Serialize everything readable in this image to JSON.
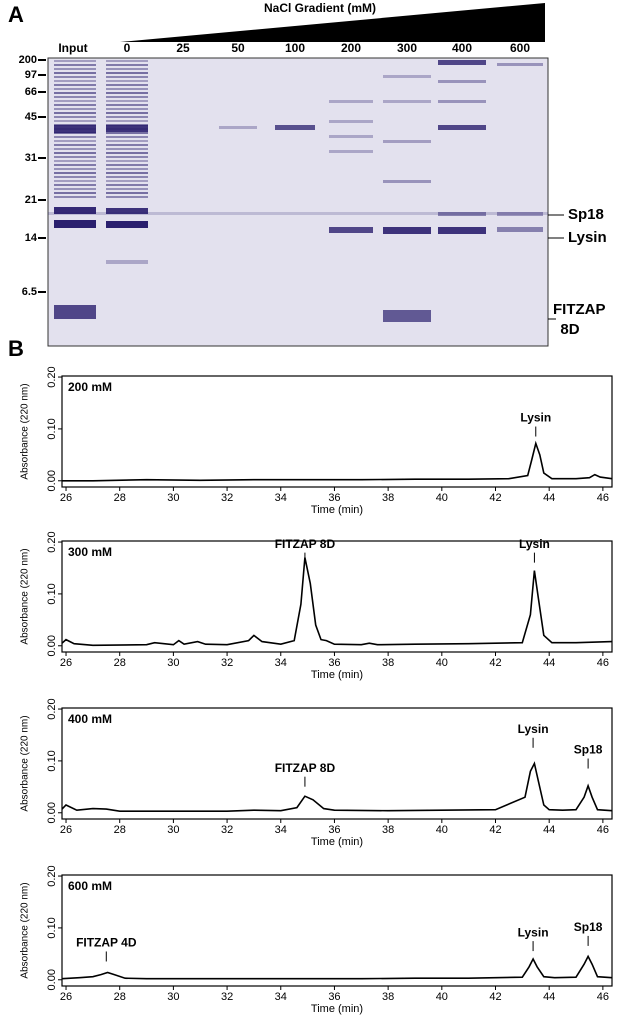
{
  "panel_labels": [
    "A",
    "B"
  ],
  "gel": {
    "title": "NaCl Gradient (mM)",
    "lanes": [
      "Input",
      "0",
      "25",
      "50",
      "100",
      "200",
      "300",
      "400",
      "600"
    ],
    "markers": [
      "200",
      "97",
      "66",
      "45",
      "31",
      "21",
      "14",
      "6.5"
    ],
    "band_labels": [
      "Sp18",
      "Lysin",
      "FITZAP",
      "8D"
    ]
  },
  "chart_data": [
    {
      "type": "line",
      "title": "200 mM",
      "xlabel": "Time (min)",
      "ylabel": "Absorbance (220 nm)",
      "color": "#000000",
      "xlim": [
        25.85,
        46.34
      ],
      "ylim": [
        -0.012,
        0.202
      ],
      "xticks": [
        26,
        28,
        30,
        32,
        34,
        36,
        38,
        40,
        42,
        44,
        46
      ],
      "yticks": [
        {
          "value": 0,
          "label": "0.00"
        },
        {
          "value": 0.1,
          "label": "0.10"
        },
        {
          "value": 0.2,
          "label": "0.20"
        }
      ],
      "x": [
        25.85,
        27,
        29,
        31,
        33,
        35,
        37,
        39,
        41,
        42.5,
        43.2,
        43.35,
        43.5,
        43.65,
        43.8,
        44.1,
        45,
        45.5,
        45.7,
        45.9,
        46.34
      ],
      "values": [
        0.0,
        0.0,
        0.002,
        0.001,
        0.002,
        0.002,
        0.002,
        0.003,
        0.003,
        0.004,
        0.01,
        0.04,
        0.072,
        0.05,
        0.015,
        0.004,
        0.004,
        0.006,
        0.012,
        0.007,
        0.004
      ],
      "annotations": [
        {
          "text": "Lysin",
          "x": 43.5,
          "y": 0.12
        }
      ]
    },
    {
      "type": "line",
      "title": "300 mM",
      "xlabel": "Time (min)",
      "ylabel": "Absorbance (220 nm)",
      "color": "#000000",
      "xlim": [
        25.85,
        46.34
      ],
      "ylim": [
        -0.012,
        0.202
      ],
      "xticks": [
        26,
        28,
        30,
        32,
        34,
        36,
        38,
        40,
        42,
        44,
        46
      ],
      "yticks": [
        {
          "value": 0,
          "label": "0.00"
        },
        {
          "value": 0.1,
          "label": "0.10"
        },
        {
          "value": 0.2,
          "label": "0.20"
        }
      ],
      "x": [
        25.85,
        26,
        26.3,
        27,
        29,
        29.3,
        30,
        30.2,
        30.4,
        30.9,
        31.2,
        32,
        32.8,
        33,
        33.3,
        34,
        34.5,
        34.75,
        34.9,
        35.1,
        35.3,
        35.5,
        35.7,
        36,
        37,
        37.3,
        37.6,
        39,
        41,
        43,
        43.3,
        43.45,
        43.6,
        43.8,
        44.1,
        45,
        46.34
      ],
      "values": [
        0.005,
        0.012,
        0.004,
        0.001,
        0.002,
        0.006,
        0.002,
        0.01,
        0.003,
        0.008,
        0.003,
        0.002,
        0.01,
        0.02,
        0.008,
        0.003,
        0.01,
        0.08,
        0.17,
        0.12,
        0.04,
        0.012,
        0.01,
        0.003,
        0.002,
        0.005,
        0.002,
        0.003,
        0.004,
        0.006,
        0.06,
        0.145,
        0.09,
        0.02,
        0.006,
        0.006,
        0.008
      ],
      "annotations": [
        {
          "text": "FITZAP 8D",
          "x": 34.9,
          "y": 0.195
        },
        {
          "text": "Lysin",
          "x": 43.45,
          "y": 0.195
        }
      ]
    },
    {
      "type": "line",
      "title": "400 mM",
      "xlabel": "Time (min)",
      "ylabel": "Absorbance (220 nm)",
      "color": "#000000",
      "xlim": [
        25.85,
        46.34
      ],
      "ylim": [
        -0.012,
        0.202
      ],
      "xticks": [
        26,
        28,
        30,
        32,
        34,
        36,
        38,
        40,
        42,
        44,
        46
      ],
      "yticks": [
        {
          "value": 0,
          "label": "0.00"
        },
        {
          "value": 0.1,
          "label": "0.10"
        },
        {
          "value": 0.2,
          "label": "0.20"
        }
      ],
      "x": [
        25.85,
        26,
        26.4,
        27,
        27.5,
        28,
        30,
        32,
        33,
        34,
        34.6,
        34.9,
        35.2,
        35.6,
        36,
        38,
        40,
        42,
        43.1,
        43.3,
        43.45,
        43.6,
        43.8,
        44,
        44.5,
        45,
        45.3,
        45.45,
        45.6,
        45.8,
        46.34
      ],
      "values": [
        0.007,
        0.015,
        0.005,
        0.008,
        0.007,
        0.003,
        0.003,
        0.003,
        0.005,
        0.004,
        0.01,
        0.032,
        0.025,
        0.008,
        0.005,
        0.004,
        0.005,
        0.006,
        0.03,
        0.08,
        0.095,
        0.06,
        0.015,
        0.006,
        0.005,
        0.006,
        0.03,
        0.052,
        0.03,
        0.006,
        0.004
      ],
      "annotations": [
        {
          "text": "FITZAP 8D",
          "x": 34.9,
          "y": 0.085
        },
        {
          "text": "Lysin",
          "x": 43.4,
          "y": 0.16
        },
        {
          "text": "Sp18",
          "x": 45.45,
          "y": 0.12
        }
      ]
    },
    {
      "type": "line",
      "title": "600 mM",
      "xlabel": "Time (min)",
      "ylabel": "Absorbance (220 nm)",
      "color": "#000000",
      "xlim": [
        25.85,
        46.34
      ],
      "ylim": [
        -0.012,
        0.202
      ],
      "xticks": [
        26,
        28,
        30,
        32,
        34,
        36,
        38,
        40,
        42,
        44,
        46
      ],
      "yticks": [
        {
          "value": 0,
          "label": "0.00"
        },
        {
          "value": 0.1,
          "label": "0.10"
        },
        {
          "value": 0.2,
          "label": "0.20"
        }
      ],
      "x": [
        25.85,
        26.5,
        27,
        27.3,
        27.55,
        27.8,
        28.2,
        29,
        31,
        33,
        35,
        37,
        39,
        41,
        43,
        43.25,
        43.4,
        43.55,
        43.8,
        44.2,
        45,
        45.3,
        45.45,
        45.6,
        45.8,
        46.34
      ],
      "values": [
        0.002,
        0.004,
        0.006,
        0.01,
        0.014,
        0.01,
        0.003,
        0.002,
        0.002,
        0.002,
        0.002,
        0.002,
        0.003,
        0.003,
        0.005,
        0.025,
        0.04,
        0.025,
        0.006,
        0.004,
        0.005,
        0.03,
        0.045,
        0.03,
        0.006,
        0.004
      ],
      "annotations": [
        {
          "text": "FITZAP 4D",
          "x": 27.5,
          "y": 0.07
        },
        {
          "text": "Lysin",
          "x": 43.4,
          "y": 0.09
        },
        {
          "text": "Sp18",
          "x": 45.45,
          "y": 0.1
        }
      ]
    }
  ]
}
